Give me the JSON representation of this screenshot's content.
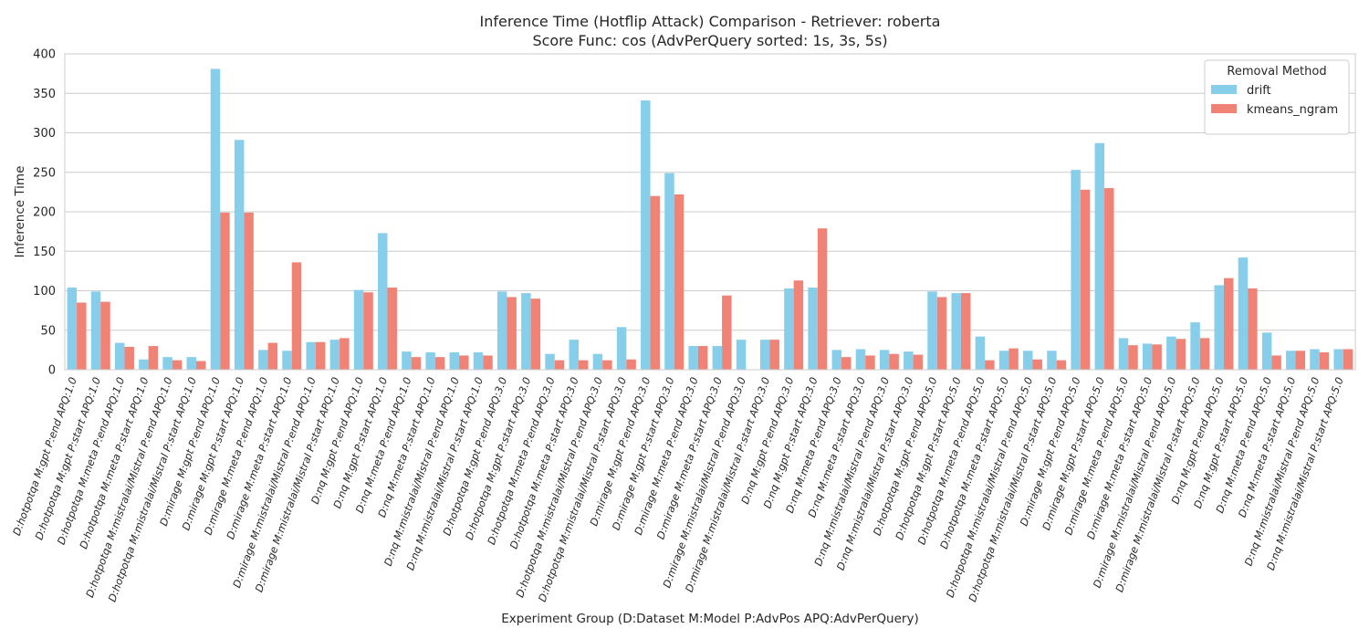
{
  "chart_data": {
    "type": "bar",
    "title": "Inference Time (Hotflip Attack) Comparison - Retriever: roberta",
    "subtitle": "Score Func: cos (AdvPerQuery sorted: 1s, 3s, 5s)",
    "xlabel": "Experiment Group (D:Dataset M:Model P:AdvPos APQ:AdvPerQuery)",
    "ylabel": "Inference Time",
    "ylim": [
      0,
      400
    ],
    "yticks": [
      0,
      50,
      100,
      150,
      200,
      250,
      300,
      350,
      400
    ],
    "grid": true,
    "legend": {
      "title": "Removal Method",
      "position": "top-right"
    },
    "colors": {
      "drift": "#87CEEB",
      "kmeans_ngram": "#F08375"
    },
    "categories": [
      "D:hotpotqa M:gpt P:end APQ:1.0",
      "D:hotpotqa M:gpt P:start APQ:1.0",
      "D:hotpotqa M:meta P:end APQ:1.0",
      "D:hotpotqa M:meta P:start APQ:1.0",
      "D:hotpotqa M:mistralai/Mistral P:end APQ:1.0",
      "D:hotpotqa M:mistralai/Mistral P:start APQ:1.0",
      "D:mirage M:gpt P:end APQ:1.0",
      "D:mirage M:gpt P:start APQ:1.0",
      "D:mirage M:meta P:end APQ:1.0",
      "D:mirage M:meta P:start APQ:1.0",
      "D:mirage M:mistralai/Mistral P:end APQ:1.0",
      "D:mirage M:mistralai/Mistral P:start APQ:1.0",
      "D:nq M:gpt P:end APQ:1.0",
      "D:nq M:gpt P:start APQ:1.0",
      "D:nq M:meta P:end APQ:1.0",
      "D:nq M:meta P:start APQ:1.0",
      "D:nq M:mistralai/Mistral P:end APQ:1.0",
      "D:nq M:mistralai/Mistral P:start APQ:1.0",
      "D:hotpotqa M:gpt P:end APQ:3.0",
      "D:hotpotqa M:gpt P:start APQ:3.0",
      "D:hotpotqa M:meta P:end APQ:3.0",
      "D:hotpotqa M:meta P:start APQ:3.0",
      "D:hotpotqa M:mistralai/Mistral P:end APQ:3.0",
      "D:hotpotqa M:mistralai/Mistral P:start APQ:3.0",
      "D:mirage M:gpt P:end APQ:3.0",
      "D:mirage M:gpt P:start APQ:3.0",
      "D:mirage M:meta P:end APQ:3.0",
      "D:mirage M:meta P:start APQ:3.0",
      "D:mirage M:mistralai/Mistral P:end APQ:3.0",
      "D:mirage M:mistralai/Mistral P:start APQ:3.0",
      "D:nq M:gpt P:end APQ:3.0",
      "D:nq M:gpt P:start APQ:3.0",
      "D:nq M:meta P:end APQ:3.0",
      "D:nq M:meta P:start APQ:3.0",
      "D:nq M:mistralai/Mistral P:end APQ:3.0",
      "D:nq M:mistralai/Mistral P:start APQ:3.0",
      "D:hotpotqa M:gpt P:end APQ:5.0",
      "D:hotpotqa M:gpt P:start APQ:5.0",
      "D:hotpotqa M:meta P:end APQ:5.0",
      "D:hotpotqa M:meta P:start APQ:5.0",
      "D:hotpotqa M:mistralai/Mistral P:end APQ:5.0",
      "D:hotpotqa M:mistralai/Mistral P:start APQ:5.0",
      "D:mirage M:gpt P:end APQ:5.0",
      "D:mirage M:gpt P:start APQ:5.0",
      "D:mirage M:meta P:end APQ:5.0",
      "D:mirage M:meta P:start APQ:5.0",
      "D:mirage M:mistralai/Mistral P:end APQ:5.0",
      "D:mirage M:mistralai/Mistral P:start APQ:5.0",
      "D:nq M:gpt P:end APQ:5.0",
      "D:nq M:gpt P:start APQ:5.0",
      "D:nq M:meta P:end APQ:5.0",
      "D:nq M:meta P:start APQ:5.0",
      "D:nq M:mistralai/Mistral P:end APQ:5.0",
      "D:nq M:mistralai/Mistral P:start APQ:5.0"
    ],
    "series": [
      {
        "name": "drift",
        "values": [
          104,
          99,
          34,
          13,
          16,
          16,
          381,
          291,
          25,
          24,
          35,
          38,
          101,
          173,
          23,
          22,
          22,
          22,
          99,
          97,
          20,
          38,
          20,
          54,
          341,
          249,
          30,
          30,
          38,
          38,
          103,
          104,
          25,
          26,
          25,
          23,
          99,
          97,
          42,
          24,
          24,
          24,
          253,
          287,
          40,
          33,
          42,
          60,
          107,
          142,
          47,
          24,
          26,
          26
        ]
      },
      {
        "name": "kmeans_ngram",
        "values": [
          85,
          86,
          29,
          30,
          12,
          11,
          199,
          199,
          34,
          136,
          35,
          40,
          98,
          104,
          16,
          16,
          18,
          18,
          92,
          90,
          12,
          12,
          12,
          13,
          220,
          222,
          30,
          94,
          0,
          38,
          113,
          179,
          16,
          18,
          20,
          19,
          92,
          97,
          12,
          27,
          13,
          12,
          228,
          230,
          31,
          32,
          39,
          40,
          116,
          103,
          18,
          24,
          22,
          26
        ]
      }
    ]
  }
}
